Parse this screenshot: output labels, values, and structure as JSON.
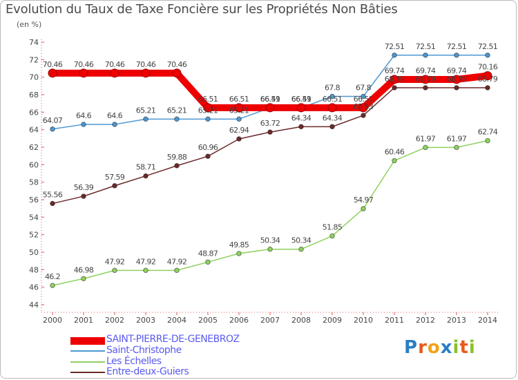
{
  "page": {
    "title": "Evolution du Taux de Taxe Foncière sur les Propriétés Non Bâties",
    "subtitle": "(en %)"
  },
  "logo": {
    "letters": [
      "P",
      "r",
      "o",
      "x",
      "i",
      "t",
      "i"
    ],
    "colors": [
      "#2a7fc4",
      "#e85a1c",
      "#f0a21a",
      "#2a7fc4",
      "#8cbf2a",
      "#e85a1c",
      "#8cbf2a"
    ]
  },
  "chart_data": {
    "type": "line",
    "title": "Evolution du Taux de Taxe Foncière sur les Propriétés Non Bâties",
    "ylabel": "(en %)",
    "xlabel": "",
    "categories": [
      "2000",
      "2001",
      "2002",
      "2003",
      "2004",
      "2005",
      "2006",
      "2007",
      "2008",
      "2009",
      "2010",
      "2011",
      "2012",
      "2013",
      "2014"
    ],
    "ylim": [
      44,
      74
    ],
    "yticks": [
      44,
      46,
      48,
      50,
      52,
      54,
      56,
      58,
      60,
      62,
      64,
      66,
      68,
      70,
      72,
      74
    ],
    "grid": false,
    "series": [
      {
        "name": "SAINT-PIERRE-DE-GENEBROZ",
        "color": "#ee0000",
        "values": [
          70.46,
          70.46,
          70.46,
          70.46,
          70.46,
          66.51,
          66.51,
          66.51,
          66.51,
          66.51,
          66.51,
          69.74,
          69.74,
          69.74,
          70.16
        ],
        "labels": [
          "70.46",
          "70.46",
          "70.46",
          "70.46",
          "70.46",
          "66.51",
          "66.51",
          "66.51",
          "66.51",
          "66.51",
          "66.51",
          "69.74",
          "69.74",
          "69.74",
          "70.16"
        ]
      },
      {
        "name": "Saint-Christophe",
        "color": "#4f97d0",
        "values": [
          64.07,
          64.6,
          64.6,
          65.21,
          65.21,
          65.21,
          65.21,
          66.49,
          66.49,
          67.8,
          67.8,
          72.51,
          72.51,
          72.51,
          72.51
        ],
        "labels": [
          "64.07",
          "64.6",
          "64.6",
          "65.21",
          "65.21",
          "65.21",
          "65.21",
          "66.49",
          "66.49",
          "67.8",
          "67.8",
          "72.51",
          "72.51",
          "72.51",
          "72.51"
        ]
      },
      {
        "name": "Les Échelles",
        "color": "#8fd15f",
        "values": [
          46.2,
          46.98,
          47.92,
          47.92,
          47.92,
          48.87,
          49.85,
          50.34,
          50.34,
          51.85,
          54.97,
          60.46,
          61.97,
          61.97,
          62.74
        ],
        "labels": [
          "46.2",
          "46.98",
          "47.92",
          "47.92",
          "47.92",
          "48.87",
          "49.85",
          "50.34",
          "50.34",
          "51.85",
          "54.97",
          "60.46",
          "61.97",
          "61.97",
          "62.74"
        ]
      },
      {
        "name": "Entre-deux-Guiers",
        "color": "#6b2a2a",
        "values": [
          55.56,
          56.39,
          57.59,
          58.71,
          59.88,
          60.96,
          62.94,
          63.72,
          64.34,
          64.34,
          65.63,
          68.79,
          68.79,
          68.79,
          68.79
        ],
        "labels": [
          "55.56",
          "56.39",
          "57.59",
          "58.71",
          "59.88",
          "60.96",
          "62.94",
          "63.72",
          "64.34",
          "64.34",
          "65.63",
          "68.79",
          "68.79",
          "68.79",
          "68.79"
        ]
      }
    ]
  }
}
